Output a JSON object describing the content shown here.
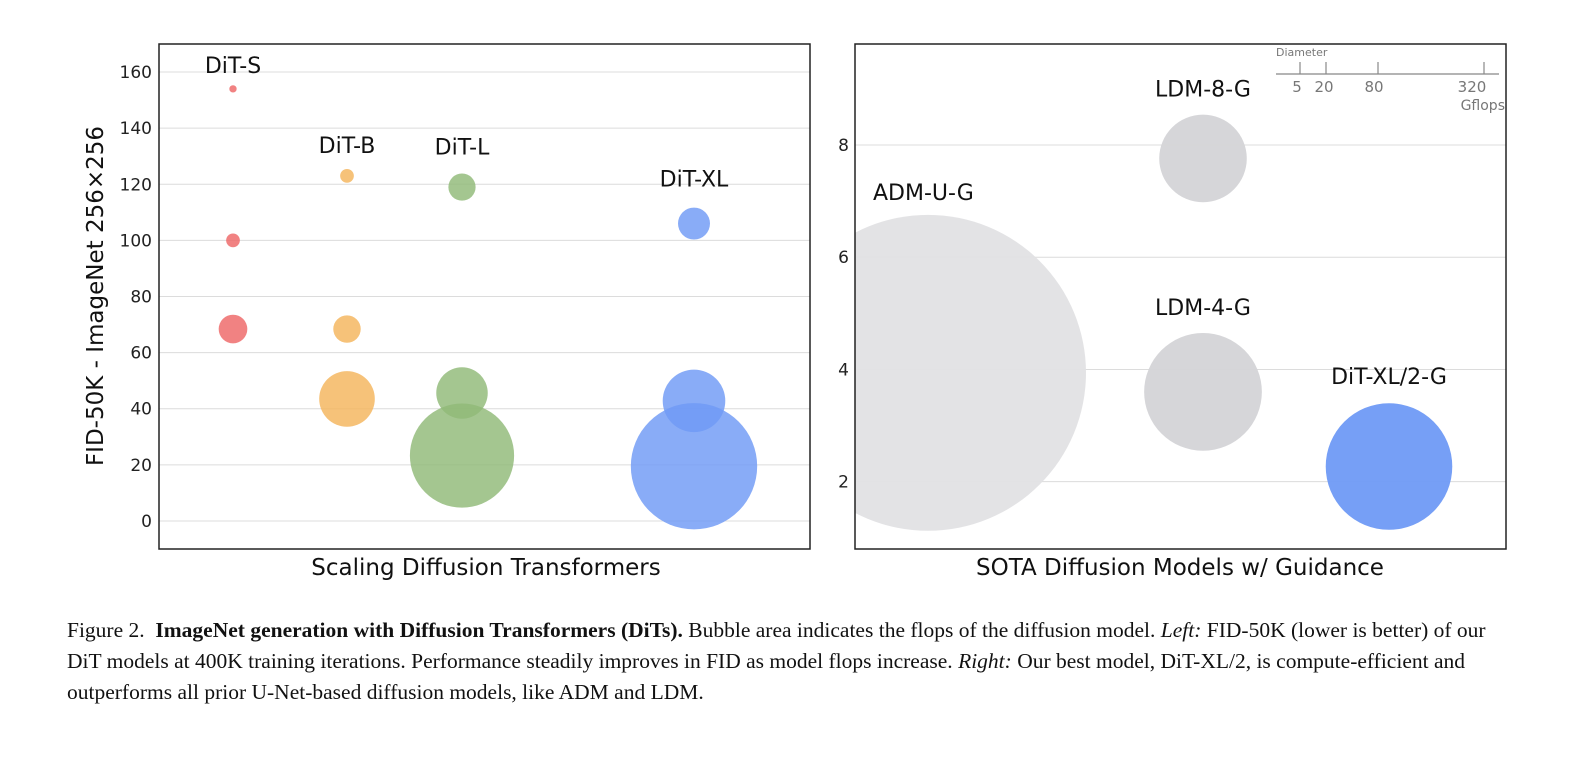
{
  "chart_data": [
    {
      "type": "scatter",
      "subtype": "bubble",
      "xlabel": "Scaling Diffusion Transformers",
      "ylabel": "FID-50K - ImageNet 256×256",
      "ylim": [
        -10,
        170
      ],
      "yticks": [
        0,
        20,
        40,
        60,
        80,
        100,
        120,
        140,
        160
      ],
      "grid": true,
      "groups": [
        {
          "name": "DiT-S",
          "color": "#ee6666",
          "points": [
            {
              "fid": 154,
              "gflops": 0.4
            },
            {
              "fid": 100,
              "gflops": 1.4
            },
            {
              "fid": 68.4,
              "gflops": 6.1
            }
          ]
        },
        {
          "name": "DiT-B",
          "color": "#f4b45c",
          "points": [
            {
              "fid": 123,
              "gflops": 1.4
            },
            {
              "fid": 68.4,
              "gflops": 5.6
            },
            {
              "fid": 43.5,
              "gflops": 23
            }
          ]
        },
        {
          "name": "DiT-L",
          "color": "#90ba78",
          "points": [
            {
              "fid": 119,
              "gflops": 5.5
            },
            {
              "fid": 45.6,
              "gflops": 19.7
            },
            {
              "fid": 23.3,
              "gflops": 80.7
            }
          ]
        },
        {
          "name": "DiT-XL",
          "color": "#6f9af5",
          "points": [
            {
              "fid": 106,
              "gflops": 7.6
            },
            {
              "fid": 42.8,
              "gflops": 29.1
            },
            {
              "fid": 19.5,
              "gflops": 118.6
            }
          ]
        }
      ]
    },
    {
      "type": "scatter",
      "subtype": "bubble",
      "xlabel": "SOTA Diffusion Models w/ Guidance",
      "ylabel": "",
      "ylim": [
        0.8,
        9.8
      ],
      "yticks": [
        2,
        4,
        6,
        8
      ],
      "grid": true,
      "points": [
        {
          "name": "ADM-U-G",
          "fid": 3.94,
          "gflops": 742,
          "color": "#e2e2e4"
        },
        {
          "name": "LDM-8-G",
          "fid": 7.76,
          "gflops": 57,
          "color": "#d4d4d7"
        },
        {
          "name": "LDM-4-G",
          "fid": 3.6,
          "gflops": 103,
          "color": "#d4d4d7"
        },
        {
          "name": "DiT-XL/2-G",
          "fid": 2.27,
          "gflops": 119,
          "color": "#6f9af5"
        }
      ],
      "size_legend": {
        "title": "Diameter",
        "values": [
          5,
          20,
          80,
          320
        ],
        "unit": "Gflops"
      }
    }
  ],
  "caption": {
    "figure_label": "Figure 2.",
    "bold_title": "ImageNet generation with Diffusion Transformers (DiTs).",
    "text1": "Bubble area indicates the flops of the diffusion model.",
    "left_label": "Left:",
    "text2": "FID-50K (lower is better) of our DiT models at 400K training iterations. Performance steadily improves in FID as model flops increase.",
    "right_label": "Right:",
    "text3": "Our best model, DiT-XL/2, is compute-efficient and outperforms all prior U-Net-based diffusion models, like ADM and LDM."
  }
}
